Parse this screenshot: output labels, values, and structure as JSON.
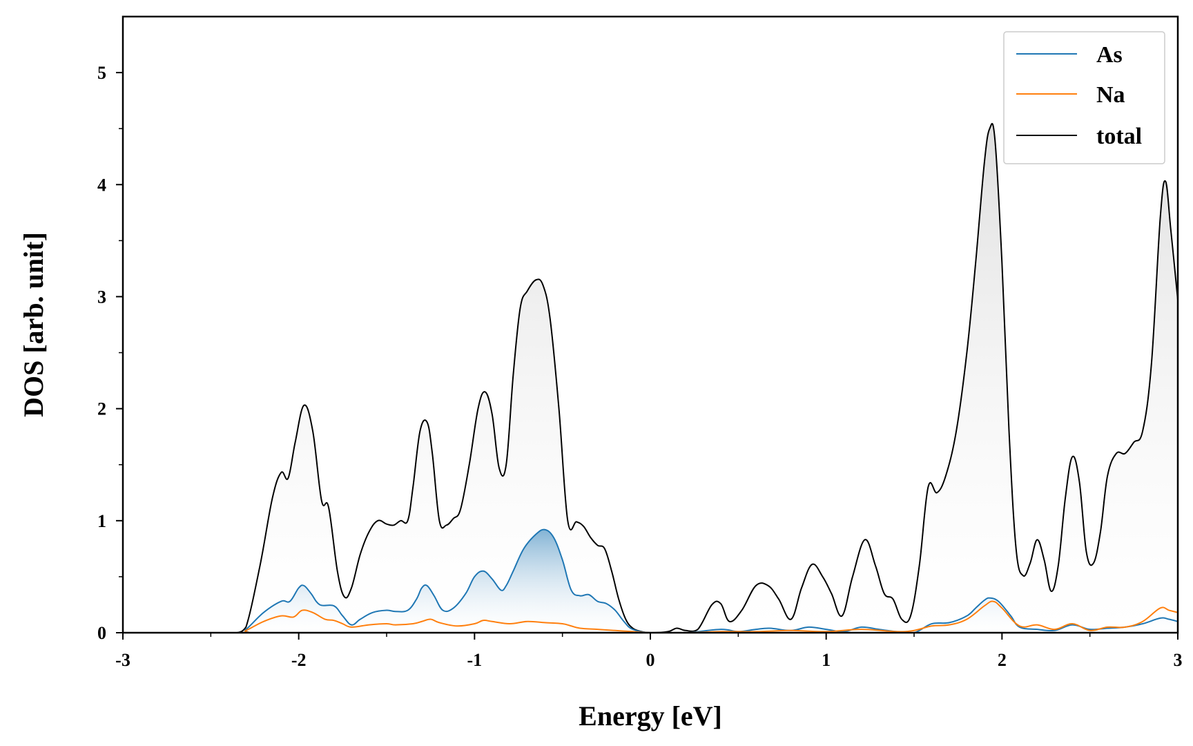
{
  "chart_data": {
    "type": "line",
    "xlabel": "Energy [eV]",
    "ylabel": "DOS [arb. unit]",
    "xlim": [
      -3,
      3
    ],
    "ylim": [
      0,
      5.5
    ],
    "xticks": [
      -3,
      -2,
      -1,
      0,
      1,
      2,
      3
    ],
    "xtick_labels": [
      "-3",
      "-2",
      "-1",
      "0",
      "1",
      "2",
      "3"
    ],
    "yticks": [
      0,
      1,
      2,
      3,
      4,
      5
    ],
    "ytick_labels": [
      "0",
      "1",
      "2",
      "3",
      "4",
      "5"
    ],
    "grid": false,
    "legend_position": "top-right",
    "series": [
      {
        "name": "As",
        "color": "#1f77b4",
        "fill": "gradient-blue",
        "x": [
          -3.0,
          -2.35,
          -2.3,
          -2.2,
          -2.1,
          -2.05,
          -2.0,
          -1.97,
          -1.93,
          -1.88,
          -1.8,
          -1.75,
          -1.7,
          -1.65,
          -1.58,
          -1.5,
          -1.45,
          -1.38,
          -1.33,
          -1.3,
          -1.27,
          -1.23,
          -1.18,
          -1.12,
          -1.05,
          -1.0,
          -0.95,
          -0.9,
          -0.85,
          -0.82,
          -0.78,
          -0.72,
          -0.65,
          -0.6,
          -0.55,
          -0.5,
          -0.45,
          -0.4,
          -0.35,
          -0.3,
          -0.25,
          -0.2,
          -0.15,
          -0.1,
          0.0,
          0.2,
          0.4,
          0.5,
          0.6,
          0.68,
          0.8,
          0.9,
          1.0,
          1.1,
          1.2,
          1.3,
          1.4,
          1.5,
          1.6,
          1.7,
          1.8,
          1.85,
          1.9,
          1.93,
          1.98,
          2.05,
          2.1,
          2.2,
          2.3,
          2.4,
          2.5,
          2.6,
          2.7,
          2.8,
          2.9,
          2.95,
          3.0
        ],
        "y": [
          0.0,
          0.0,
          0.03,
          0.18,
          0.28,
          0.28,
          0.4,
          0.42,
          0.35,
          0.25,
          0.24,
          0.15,
          0.07,
          0.12,
          0.18,
          0.2,
          0.19,
          0.2,
          0.3,
          0.4,
          0.42,
          0.33,
          0.2,
          0.22,
          0.35,
          0.5,
          0.55,
          0.48,
          0.38,
          0.42,
          0.55,
          0.75,
          0.88,
          0.92,
          0.85,
          0.65,
          0.38,
          0.33,
          0.34,
          0.28,
          0.26,
          0.2,
          0.1,
          0.03,
          0.0,
          0.0,
          0.03,
          0.01,
          0.03,
          0.04,
          0.02,
          0.05,
          0.03,
          0.01,
          0.05,
          0.03,
          0.01,
          0.0,
          0.08,
          0.09,
          0.15,
          0.22,
          0.29,
          0.31,
          0.28,
          0.15,
          0.05,
          0.03,
          0.02,
          0.07,
          0.03,
          0.04,
          0.05,
          0.08,
          0.13,
          0.12,
          0.1
        ]
      },
      {
        "name": "Na",
        "color": "#ff7f0e",
        "x": [
          -3.0,
          -2.35,
          -2.3,
          -2.2,
          -2.1,
          -2.03,
          -1.98,
          -1.92,
          -1.85,
          -1.8,
          -1.75,
          -1.7,
          -1.6,
          -1.5,
          -1.45,
          -1.35,
          -1.3,
          -1.25,
          -1.2,
          -1.1,
          -1.0,
          -0.95,
          -0.9,
          -0.8,
          -0.7,
          -0.6,
          -0.5,
          -0.45,
          -0.4,
          -0.3,
          -0.2,
          -0.1,
          0.0,
          0.2,
          0.4,
          0.6,
          0.8,
          1.0,
          1.2,
          1.4,
          1.5,
          1.6,
          1.7,
          1.8,
          1.9,
          1.95,
          2.0,
          2.1,
          2.2,
          2.3,
          2.4,
          2.5,
          2.6,
          2.7,
          2.8,
          2.9,
          2.95,
          3.0
        ],
        "y": [
          0.0,
          0.0,
          0.02,
          0.1,
          0.15,
          0.14,
          0.2,
          0.18,
          0.12,
          0.11,
          0.08,
          0.05,
          0.07,
          0.08,
          0.07,
          0.08,
          0.1,
          0.12,
          0.09,
          0.06,
          0.08,
          0.11,
          0.1,
          0.08,
          0.1,
          0.09,
          0.08,
          0.06,
          0.04,
          0.03,
          0.02,
          0.01,
          0.0,
          0.0,
          0.01,
          0.01,
          0.02,
          0.01,
          0.03,
          0.01,
          0.02,
          0.06,
          0.07,
          0.12,
          0.24,
          0.28,
          0.22,
          0.06,
          0.07,
          0.03,
          0.08,
          0.02,
          0.05,
          0.05,
          0.1,
          0.22,
          0.2,
          0.18
        ]
      },
      {
        "name": "total",
        "color": "#000000",
        "fill": "gradient-grey",
        "x": [
          -3.0,
          -2.4,
          -2.35,
          -2.3,
          -2.22,
          -2.15,
          -2.1,
          -2.06,
          -2.02,
          -1.97,
          -1.92,
          -1.87,
          -1.83,
          -1.78,
          -1.74,
          -1.7,
          -1.65,
          -1.6,
          -1.55,
          -1.5,
          -1.46,
          -1.42,
          -1.38,
          -1.35,
          -1.31,
          -1.27,
          -1.24,
          -1.2,
          -1.16,
          -1.12,
          -1.08,
          -1.03,
          -0.98,
          -0.94,
          -0.9,
          -0.86,
          -0.82,
          -0.78,
          -0.74,
          -0.7,
          -0.65,
          -0.61,
          -0.57,
          -0.52,
          -0.47,
          -0.42,
          -0.38,
          -0.34,
          -0.3,
          -0.26,
          -0.22,
          -0.18,
          -0.14,
          -0.1,
          -0.05,
          0.0,
          0.1,
          0.15,
          0.2,
          0.27,
          0.35,
          0.4,
          0.45,
          0.52,
          0.6,
          0.67,
          0.73,
          0.8,
          0.86,
          0.92,
          0.98,
          1.03,
          1.09,
          1.15,
          1.22,
          1.28,
          1.33,
          1.38,
          1.43,
          1.48,
          1.53,
          1.58,
          1.63,
          1.68,
          1.74,
          1.8,
          1.85,
          1.9,
          1.93,
          1.96,
          2.0,
          2.04,
          2.08,
          2.12,
          2.16,
          2.2,
          2.24,
          2.28,
          2.32,
          2.36,
          2.4,
          2.44,
          2.48,
          2.52,
          2.56,
          2.6,
          2.65,
          2.7,
          2.75,
          2.8,
          2.85,
          2.9,
          2.93,
          2.96,
          3.0
        ],
        "y": [
          0.0,
          0.0,
          0.0,
          0.05,
          0.6,
          1.2,
          1.43,
          1.38,
          1.7,
          2.03,
          1.8,
          1.18,
          1.12,
          0.55,
          0.32,
          0.4,
          0.7,
          0.9,
          1.0,
          0.97,
          0.96,
          1.0,
          1.0,
          1.3,
          1.8,
          1.88,
          1.6,
          1.0,
          0.96,
          1.02,
          1.1,
          1.5,
          2.0,
          2.15,
          1.95,
          1.47,
          1.5,
          2.3,
          2.9,
          3.05,
          3.15,
          3.1,
          2.8,
          2.0,
          1.0,
          0.99,
          0.95,
          0.85,
          0.78,
          0.75,
          0.55,
          0.3,
          0.12,
          0.04,
          0.01,
          0.0,
          0.01,
          0.04,
          0.02,
          0.03,
          0.25,
          0.26,
          0.1,
          0.2,
          0.42,
          0.42,
          0.3,
          0.12,
          0.4,
          0.61,
          0.5,
          0.35,
          0.15,
          0.5,
          0.83,
          0.6,
          0.35,
          0.3,
          0.12,
          0.15,
          0.6,
          1.3,
          1.25,
          1.4,
          1.8,
          2.5,
          3.3,
          4.2,
          4.5,
          4.4,
          3.3,
          1.8,
          0.75,
          0.51,
          0.62,
          0.83,
          0.65,
          0.37,
          0.6,
          1.2,
          1.57,
          1.35,
          0.72,
          0.62,
          0.9,
          1.4,
          1.6,
          1.6,
          1.7,
          1.8,
          2.4,
          3.7,
          4.03,
          3.6,
          2.97
        ]
      }
    ]
  }
}
